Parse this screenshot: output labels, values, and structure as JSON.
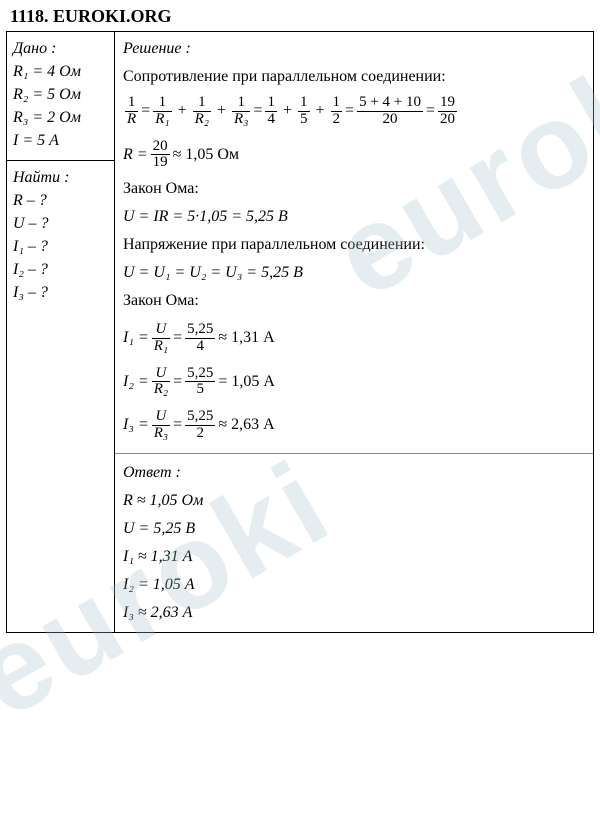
{
  "header": "1118. EUROKI.ORG",
  "given": {
    "title": "Дано :",
    "lines": [
      "R₁ = 4 Ом",
      "R₂ = 5 Ом",
      "R₃ = 2 Ом",
      "I = 5 А"
    ]
  },
  "find": {
    "title": "Найти :",
    "lines": [
      "R – ?",
      "U – ?",
      "I₁ – ?",
      "I₂ – ?",
      "I₃ – ?"
    ]
  },
  "solution": {
    "title": "Решение :",
    "text_parallel": "Сопротивление при параллельном соединении:",
    "frac_main": {
      "l": {
        "n": "1",
        "d": "R"
      },
      "r1": {
        "n": "1",
        "d": "R₁"
      },
      "r2": {
        "n": "1",
        "d": "R₂"
      },
      "r3": {
        "n": "1",
        "d": "R₃"
      },
      "v1": {
        "n": "1",
        "d": "4"
      },
      "v2": {
        "n": "1",
        "d": "5"
      },
      "v3": {
        "n": "1",
        "d": "2"
      },
      "sum": {
        "n": "5 + 4 + 10",
        "d": "20"
      },
      "res": {
        "n": "19",
        "d": "20"
      }
    },
    "r_calc": {
      "lhs": "R =",
      "frac": {
        "n": "20",
        "d": "19"
      },
      "tail": "≈ 1,05 Ом"
    },
    "ohm1_title": "Закон Ома:",
    "u_calc": "U = IR = 5·1,05 = 5,25 В",
    "voltage_title": "Напряжение при параллельном соединении:",
    "u_eq": "U = U₁ = U₂ = U₃ = 5,25 В",
    "ohm2_title": "Закон Ома:",
    "i1": {
      "lhs": "I₁ =",
      "f1": {
        "n": "U",
        "d": "R₁"
      },
      "f2": {
        "n": "5,25",
        "d": "4"
      },
      "tail": "≈ 1,31 А"
    },
    "i2": {
      "lhs": "I₂ =",
      "f1": {
        "n": "U",
        "d": "R₂"
      },
      "f2": {
        "n": "5,25",
        "d": "5"
      },
      "tail": "= 1,05 А"
    },
    "i3": {
      "lhs": "I₃ =",
      "f1": {
        "n": "U",
        "d": "R₃"
      },
      "f2": {
        "n": "5,25",
        "d": "2"
      },
      "tail": "≈ 2,63 А"
    }
  },
  "answer": {
    "title": "Ответ :",
    "lines": [
      "R ≈ 1,05 Ом",
      "U = 5,25 В",
      "I₁ ≈ 1,31 А",
      "I₂ = 1,05 А",
      "I₃ ≈ 2,63 А"
    ]
  },
  "watermark": "euroki",
  "colors": {
    "text": "#000000",
    "bg": "#ffffff",
    "wm": "rgba(160,190,200,0.28)"
  }
}
